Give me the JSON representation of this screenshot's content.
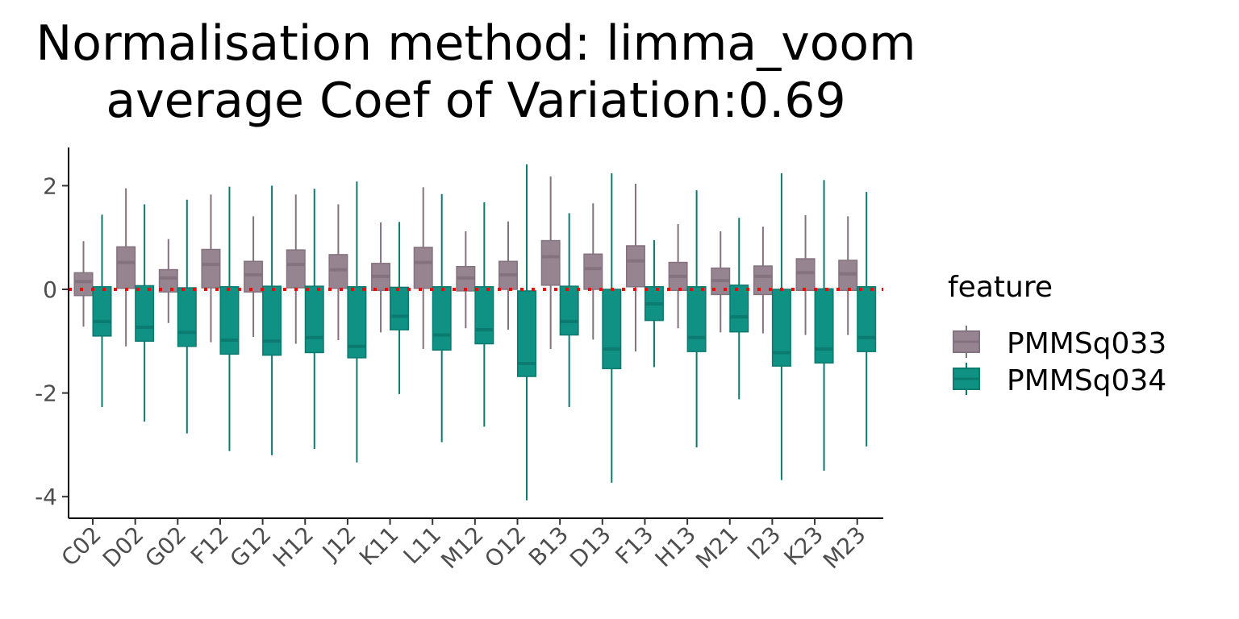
{
  "chart_data": {
    "type": "boxplot",
    "title_lines": [
      "Normalisation method: limma_voom",
      "average Coef of Variation:0.69"
    ],
    "xlabel": "",
    "ylabel": "",
    "ylim": [
      -4.4,
      2.75
    ],
    "y_ticks": [
      2,
      0,
      -2,
      -4
    ],
    "y_tick_labels": [
      "2",
      "0",
      "-2",
      "-4"
    ],
    "reference_line": {
      "y": 0,
      "color": "#ff0000",
      "style": "dotted"
    },
    "grid": false,
    "legend": {
      "title": "feature",
      "position": "right"
    },
    "categories": [
      "C02",
      "D02",
      "G02",
      "F12",
      "G12",
      "H12",
      "J12",
      "K11",
      "L11",
      "M12",
      "O12",
      "B13",
      "D13",
      "F13",
      "H13",
      "M21",
      "I23",
      "K23",
      "M23"
    ],
    "series": [
      {
        "name": "PMMSq033",
        "fill": "#968590",
        "stroke": "#84727e",
        "boxes": [
          {
            "min": -0.72,
            "q1": -0.12,
            "median": 0.15,
            "q3": 0.32,
            "max": 0.93
          },
          {
            "min": -1.1,
            "q1": 0.02,
            "median": 0.52,
            "q3": 0.82,
            "max": 1.95
          },
          {
            "min": -0.65,
            "q1": -0.05,
            "median": 0.22,
            "q3": 0.38,
            "max": 0.97
          },
          {
            "min": -1.02,
            "q1": 0.03,
            "median": 0.48,
            "q3": 0.77,
            "max": 1.83
          },
          {
            "min": -0.92,
            "q1": -0.05,
            "median": 0.28,
            "q3": 0.54,
            "max": 1.41
          },
          {
            "min": -1.05,
            "q1": 0.03,
            "median": 0.48,
            "q3": 0.76,
            "max": 1.83
          },
          {
            "min": -0.98,
            "q1": 0.02,
            "median": 0.38,
            "q3": 0.67,
            "max": 1.64
          },
          {
            "min": -0.83,
            "q1": -0.02,
            "median": 0.25,
            "q3": 0.5,
            "max": 1.29
          },
          {
            "min": -1.15,
            "q1": 0.02,
            "median": 0.52,
            "q3": 0.81,
            "max": 1.97
          },
          {
            "min": -0.75,
            "q1": -0.03,
            "median": 0.22,
            "q3": 0.44,
            "max": 1.12
          },
          {
            "min": -0.78,
            "q1": 0.0,
            "median": 0.28,
            "q3": 0.54,
            "max": 1.31
          },
          {
            "min": -1.15,
            "q1": 0.08,
            "median": 0.63,
            "q3": 0.94,
            "max": 2.18
          },
          {
            "min": -0.97,
            "q1": 0.0,
            "median": 0.4,
            "q3": 0.68,
            "max": 1.66
          },
          {
            "min": -1.2,
            "q1": 0.05,
            "median": 0.55,
            "q3": 0.84,
            "max": 2.04
          },
          {
            "min": -0.75,
            "q1": -0.02,
            "median": 0.25,
            "q3": 0.52,
            "max": 1.26
          },
          {
            "min": -0.83,
            "q1": -0.1,
            "median": 0.17,
            "q3": 0.41,
            "max": 1.12
          },
          {
            "min": -0.85,
            "q1": -0.1,
            "median": 0.25,
            "q3": 0.45,
            "max": 1.21
          },
          {
            "min": -0.88,
            "q1": -0.02,
            "median": 0.32,
            "q3": 0.59,
            "max": 1.43
          },
          {
            "min": -0.88,
            "q1": -0.02,
            "median": 0.3,
            "q3": 0.56,
            "max": 1.41
          }
        ]
      },
      {
        "name": "PMMSq034",
        "fill": "#0f9184",
        "stroke": "#0b7a6f",
        "boxes": [
          {
            "min": -2.27,
            "q1": -0.9,
            "median": -0.62,
            "q3": 0.05,
            "max": 1.44
          },
          {
            "min": -2.55,
            "q1": -1.0,
            "median": -0.73,
            "q3": 0.07,
            "max": 1.64
          },
          {
            "min": -2.78,
            "q1": -1.1,
            "median": -0.83,
            "q3": 0.03,
            "max": 1.73
          },
          {
            "min": -3.12,
            "q1": -1.25,
            "median": -0.98,
            "q3": 0.05,
            "max": 1.98
          },
          {
            "min": -3.2,
            "q1": -1.27,
            "median": -1.0,
            "q3": 0.06,
            "max": 2.0
          },
          {
            "min": -3.08,
            "q1": -1.22,
            "median": -0.93,
            "q3": 0.06,
            "max": 1.94
          },
          {
            "min": -3.34,
            "q1": -1.32,
            "median": -1.1,
            "q3": 0.05,
            "max": 2.08
          },
          {
            "min": -2.02,
            "q1": -0.78,
            "median": -0.52,
            "q3": 0.04,
            "max": 1.3
          },
          {
            "min": -2.95,
            "q1": -1.17,
            "median": -0.88,
            "q3": 0.05,
            "max": 1.84
          },
          {
            "min": -2.65,
            "q1": -1.05,
            "median": -0.78,
            "q3": 0.05,
            "max": 1.68
          },
          {
            "min": -4.07,
            "q1": -1.68,
            "median": -1.43,
            "q3": -0.03,
            "max": 2.41
          },
          {
            "min": -2.27,
            "q1": -0.88,
            "median": -0.62,
            "q3": 0.06,
            "max": 1.47
          },
          {
            "min": -3.73,
            "q1": -1.53,
            "median": -1.15,
            "q3": 0.0,
            "max": 2.24
          },
          {
            "min": -1.5,
            "q1": -0.6,
            "median": -0.28,
            "q3": 0.05,
            "max": 0.95
          },
          {
            "min": -3.05,
            "q1": -1.2,
            "median": -0.93,
            "q3": 0.05,
            "max": 1.91
          },
          {
            "min": -2.12,
            "q1": -0.82,
            "median": -0.53,
            "q3": 0.08,
            "max": 1.38
          },
          {
            "min": -3.68,
            "q1": -1.48,
            "median": -1.22,
            "q3": 0.0,
            "max": 2.24
          },
          {
            "min": -3.5,
            "q1": -1.42,
            "median": -1.15,
            "q3": 0.01,
            "max": 2.11
          },
          {
            "min": -3.03,
            "q1": -1.2,
            "median": -0.93,
            "q3": 0.05,
            "max": 1.88
          }
        ]
      }
    ]
  }
}
